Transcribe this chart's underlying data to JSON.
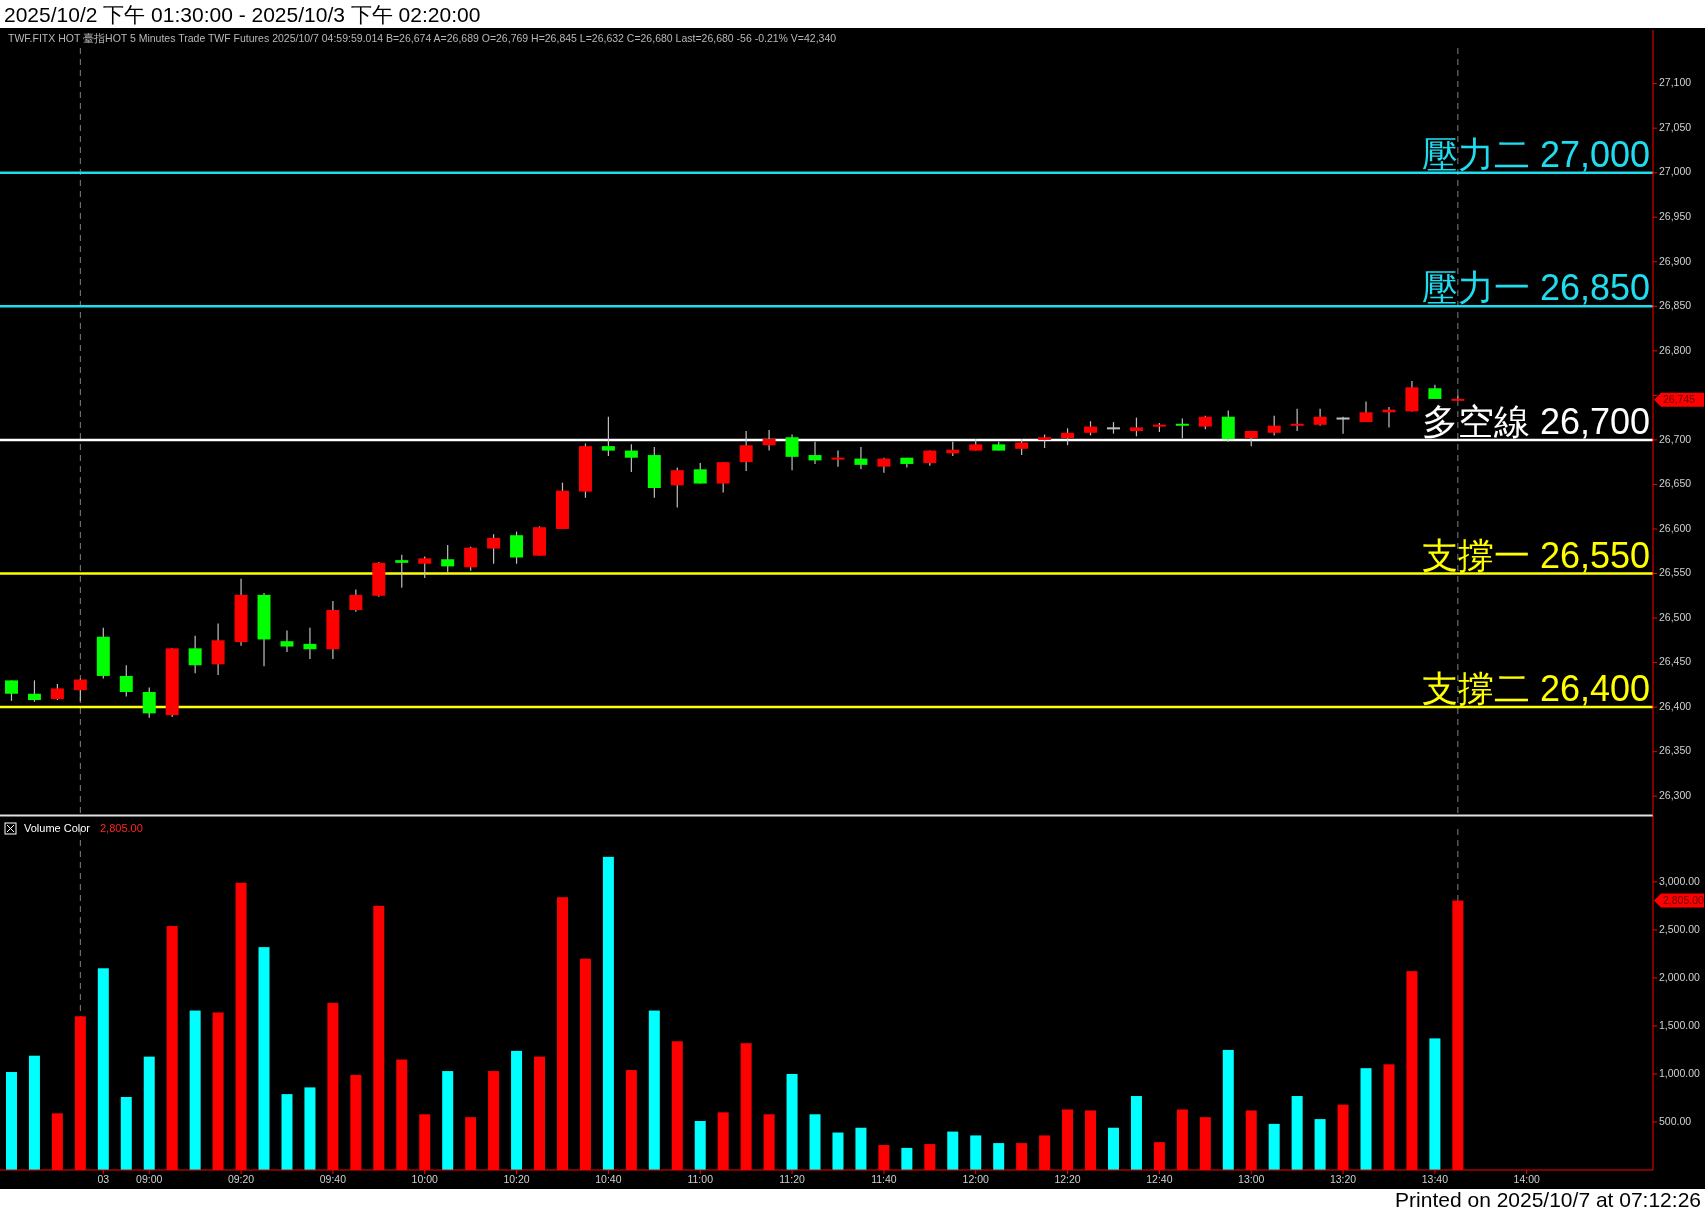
{
  "chart_data": [
    {
      "type": "candlestick",
      "title": "2025/10/2 下午 01:30:00 - 2025/10/3 下午 02:20:00",
      "subtitle": "TWF.FITX HOT 臺指HOT 5 Minutes Trade TWF Futures 2025/10/7 04:59:59.014 B=26,674 A=26,689 O=26,769 H=26,845 L=26,632 C=26,680 Last=26,680 -56 -0.21% V=42,340",
      "categories": [
        null,
        null,
        null,
        null,
        null,
        null,
        null,
        null,
        null,
        null,
        null,
        null,
        null,
        null,
        null,
        null,
        null,
        null,
        null,
        null,
        null,
        null,
        null,
        null,
        null,
        null,
        null,
        null,
        null,
        null,
        null,
        null,
        null,
        null,
        null,
        null,
        null,
        null,
        null,
        null,
        null,
        null,
        null,
        null,
        null,
        null,
        null,
        null,
        null,
        null,
        null,
        null,
        null,
        null,
        null,
        null,
        null,
        null,
        null,
        null,
        null,
        null,
        null,
        null,
        null,
        null,
        null,
        null,
        null,
        null,
        null,
        null
      ],
      "ohlc": [
        [
          26430,
          26430,
          26407,
          26415
        ],
        [
          26415,
          26430,
          26406,
          26408
        ],
        [
          26409,
          26426,
          26408,
          26421
        ],
        [
          26419,
          26432,
          26407,
          26431
        ],
        [
          26479,
          26489,
          26432,
          26435
        ],
        [
          26435,
          26447,
          26412,
          26417
        ],
        [
          26417,
          26422,
          26388,
          26393
        ],
        [
          26391,
          26466,
          26389,
          26466
        ],
        [
          26466,
          26480,
          26438,
          26447
        ],
        [
          26448,
          26494,
          26436,
          26475
        ],
        [
          26473,
          26544,
          26469,
          26526
        ],
        [
          26526,
          26528,
          26446,
          26476
        ],
        [
          26474,
          26486,
          26462,
          26468
        ],
        [
          26471,
          26489,
          26454,
          26465
        ],
        [
          26465,
          26519,
          26454,
          26509
        ],
        [
          26509,
          26532,
          26507,
          26526
        ],
        [
          26525,
          26563,
          26524,
          26562
        ],
        [
          26565,
          26571,
          26534,
          26562
        ],
        [
          26561,
          26569,
          26545,
          26567
        ],
        [
          26566,
          26582,
          26551,
          26558
        ],
        [
          26557,
          26580,
          26553,
          26579
        ],
        [
          26578,
          26594,
          26561,
          26590
        ],
        [
          26593,
          26597,
          26561,
          26568
        ],
        [
          26570,
          26603,
          26570,
          26602
        ],
        [
          26600,
          26652,
          26600,
          26643
        ],
        [
          26642,
          26696,
          26635,
          26693
        ],
        [
          26693,
          26726,
          26682,
          26688
        ],
        [
          26688,
          26695,
          26664,
          26680
        ],
        [
          26683,
          26692,
          26635,
          26646
        ],
        [
          26649,
          26669,
          26624,
          26666
        ],
        [
          26667,
          26674,
          26651,
          26651
        ],
        [
          26651,
          26675,
          26641,
          26675
        ],
        [
          26675,
          26710,
          26665,
          26694
        ],
        [
          26694,
          26711,
          26688,
          26701
        ],
        [
          26703,
          26706,
          26666,
          26681
        ],
        [
          26683,
          26698,
          26673,
          26677
        ],
        [
          26677,
          26688,
          26670,
          26679
        ],
        [
          26679,
          26692,
          26667,
          26672
        ],
        [
          26670,
          26680,
          26663,
          26679
        ],
        [
          26680,
          26680,
          26669,
          26673
        ],
        [
          26674,
          26688,
          26671,
          26688
        ],
        [
          26685,
          26698,
          26682,
          26689
        ],
        [
          26688,
          26701,
          26688,
          26695
        ],
        [
          26695,
          26698,
          26688,
          26688
        ],
        [
          26690,
          26701,
          26683,
          26697
        ],
        [
          26700,
          26706,
          26691,
          26703
        ],
        [
          26702,
          26713,
          26694,
          26708
        ],
        [
          26708,
          26721,
          26705,
          26715
        ],
        [
          26713,
          26720,
          26707,
          26713
        ],
        [
          26710,
          26725,
          26704,
          26714
        ],
        [
          26714,
          26719,
          26709,
          26716
        ],
        [
          26717,
          26724,
          26702,
          26716
        ],
        [
          26715,
          26727,
          26712,
          26726
        ],
        [
          26726,
          26733,
          26698,
          26701
        ],
        [
          26702,
          26710,
          26693,
          26710
        ],
        [
          26708,
          26727,
          26705,
          26716
        ],
        [
          26716,
          26735,
          26710,
          26717
        ],
        [
          26717,
          26735,
          26716,
          26726
        ],
        [
          26724,
          26726,
          26707,
          26724
        ],
        [
          26720,
          26743,
          26720,
          26731
        ],
        [
          26731,
          26737,
          26714,
          26734
        ],
        [
          26732,
          26766,
          26732,
          26759
        ],
        [
          26758,
          26762,
          26746,
          26746
        ],
        [
          26744,
          26750,
          26744,
          26745
        ],
        null,
        null,
        null,
        null,
        null,
        null,
        null,
        null
      ],
      "colors": [
        "#00ff00",
        "#00ff00",
        "#ff0000",
        "#ff0000",
        "#00ff00",
        "#00ff00",
        "#00ff00",
        "#ff0000",
        "#00ff00",
        "#ff0000",
        "#ff0000",
        "#00ff00",
        "#00ff00",
        "#00ff00",
        "#ff0000",
        "#ff0000",
        "#ff0000",
        "#00ff00",
        "#ff0000",
        "#00ff00",
        "#ff0000",
        "#ff0000",
        "#00ff00",
        "#ff0000",
        "#ff0000",
        "#ff0000",
        "#00ff00",
        "#00ff00",
        "#00ff00",
        "#ff0000",
        "#00ff00",
        "#ff0000",
        "#ff0000",
        "#ff0000",
        "#00ff00",
        "#00ff00",
        "#ff0000",
        "#00ff00",
        "#ff0000",
        "#00ff00",
        "#ff0000",
        "#ff0000",
        "#ff0000",
        "#00ff00",
        "#ff0000",
        "#ff0000",
        "#ff0000",
        "#ff0000",
        "#c0c0c0",
        "#ff0000",
        "#ff0000",
        "#00ff00",
        "#ff0000",
        "#00ff00",
        "#ff0000",
        "#ff0000",
        "#ff0000",
        "#ff0000",
        "#c0c0c0",
        "#ff0000",
        "#ff0000",
        "#ff0000",
        "#00ff00",
        "#ff0000",
        null,
        null,
        null,
        null,
        null,
        null,
        null,
        null
      ],
      "ylim": [
        26280,
        27140
      ],
      "yticks": [
        {
          "value": 26300,
          "label": "26,300"
        },
        {
          "value": 26350,
          "label": "26,350"
        },
        {
          "value": 26400,
          "label": "26,400"
        },
        {
          "value": 26450,
          "label": "26,450"
        },
        {
          "value": 26500,
          "label": "26,500"
        },
        {
          "value": 26550,
          "label": "26,550"
        },
        {
          "value": 26600,
          "label": "26,600"
        },
        {
          "value": 26650,
          "label": "26,650"
        },
        {
          "value": 26700,
          "label": "26,700"
        },
        {
          "value": 26750,
          "label": null
        },
        {
          "value": 26800,
          "label": "26,800"
        },
        {
          "value": 26850,
          "label": "26,850"
        },
        {
          "value": 26900,
          "label": "26,900"
        },
        {
          "value": 26950,
          "label": "26,950"
        },
        {
          "value": 27000,
          "label": "27,000"
        },
        {
          "value": 27050,
          "label": "27,050"
        },
        {
          "value": 27100,
          "label": "27,100"
        }
      ],
      "tick_labels": "y",
      "ref_lines": [
        {
          "axis": "y",
          "value": 27000,
          "label": "壓力二 27,000",
          "color": "#20dcef"
        },
        {
          "axis": "y",
          "value": 26850,
          "label": "壓力一 26,850",
          "color": "#20dcef"
        },
        {
          "axis": "y",
          "value": 26700,
          "label": "多空線 26,700",
          "color": "#ffffff"
        },
        {
          "axis": "y",
          "value": 26550,
          "label": "支撐一 26,550",
          "color": "#ffff00"
        },
        {
          "axis": "y",
          "value": 26400,
          "label": "支撐二 26,400",
          "color": "#ffff00"
        }
      ],
      "annotations": [
        "26,745"
      ]
    },
    {
      "type": "bar",
      "title": "Volume Color",
      "subtitle": "2,805.00",
      "categories": [
        null,
        null,
        null,
        null,
        "03",
        null,
        "09:00",
        null,
        null,
        null,
        "09:20",
        null,
        null,
        null,
        "09:40",
        null,
        null,
        null,
        "10:00",
        null,
        null,
        null,
        "10:20",
        null,
        null,
        null,
        "10:40",
        null,
        null,
        null,
        "11:00",
        null,
        null,
        null,
        "11:20",
        null,
        null,
        null,
        "11:40",
        null,
        null,
        null,
        "12:00",
        null,
        null,
        null,
        "12:20",
        null,
        null,
        null,
        "12:40",
        null,
        null,
        null,
        "13:00",
        null,
        null,
        null,
        "13:20",
        null,
        null,
        null,
        "13:40",
        null,
        null,
        null,
        "14:00",
        null,
        null,
        null,
        null,
        null
      ],
      "values": [
        1020,
        1190,
        590,
        1600,
        2100,
        760,
        1180,
        2540,
        1660,
        1640,
        2990,
        2320,
        790,
        860,
        1740,
        990,
        2750,
        1150,
        580,
        1030,
        550,
        1030,
        1240,
        1180,
        2840,
        2200,
        3260,
        1040,
        1660,
        1340,
        510,
        600,
        1320,
        580,
        1000,
        580,
        390,
        440,
        260,
        230,
        270,
        400,
        360,
        280,
        280,
        360,
        630,
        620,
        440,
        770,
        290,
        630,
        550,
        1250,
        620,
        480,
        770,
        530,
        680,
        1060,
        1100,
        2070,
        1370,
        2805,
        null,
        null,
        null,
        null,
        null,
        null,
        null,
        null
      ],
      "colors": [
        "#00ffff",
        "#00ffff",
        "#ff0000",
        "#ff0000",
        "#00ffff",
        "#00ffff",
        "#00ffff",
        "#ff0000",
        "#00ffff",
        "#ff0000",
        "#ff0000",
        "#00ffff",
        "#00ffff",
        "#00ffff",
        "#ff0000",
        "#ff0000",
        "#ff0000",
        "#ff0000",
        "#ff0000",
        "#00ffff",
        "#ff0000",
        "#ff0000",
        "#00ffff",
        "#ff0000",
        "#ff0000",
        "#ff0000",
        "#00ffff",
        "#ff0000",
        "#00ffff",
        "#ff0000",
        "#00ffff",
        "#ff0000",
        "#ff0000",
        "#ff0000",
        "#00ffff",
        "#00ffff",
        "#00ffff",
        "#00ffff",
        "#ff0000",
        "#00ffff",
        "#ff0000",
        "#00ffff",
        "#00ffff",
        "#00ffff",
        "#ff0000",
        "#ff0000",
        "#ff0000",
        "#ff0000",
        "#00ffff",
        "#00ffff",
        "#ff0000",
        "#ff0000",
        "#ff0000",
        "#00ffff",
        "#ff0000",
        "#00ffff",
        "#00ffff",
        "#00ffff",
        "#ff0000",
        "#00ffff",
        "#ff0000",
        "#ff0000",
        "#00ffff",
        "#ff0000",
        null,
        null,
        null,
        null,
        null,
        null,
        null,
        null
      ],
      "ylim": [
        0,
        3550
      ],
      "yticks": [
        {
          "value": 500,
          "label": "500.00"
        },
        {
          "value": 1000,
          "label": "1,000.00"
        },
        {
          "value": 1500,
          "label": "1,500.00"
        },
        {
          "value": 2000,
          "label": "2,000.00"
        },
        {
          "value": 2500,
          "label": "2,500.00"
        },
        {
          "value": 3000,
          "label": "3,000.00"
        }
      ],
      "annotations": [
        "2,805.00",
        "Printed on 2025/10/7 at 07:12:26"
      ]
    }
  ]
}
